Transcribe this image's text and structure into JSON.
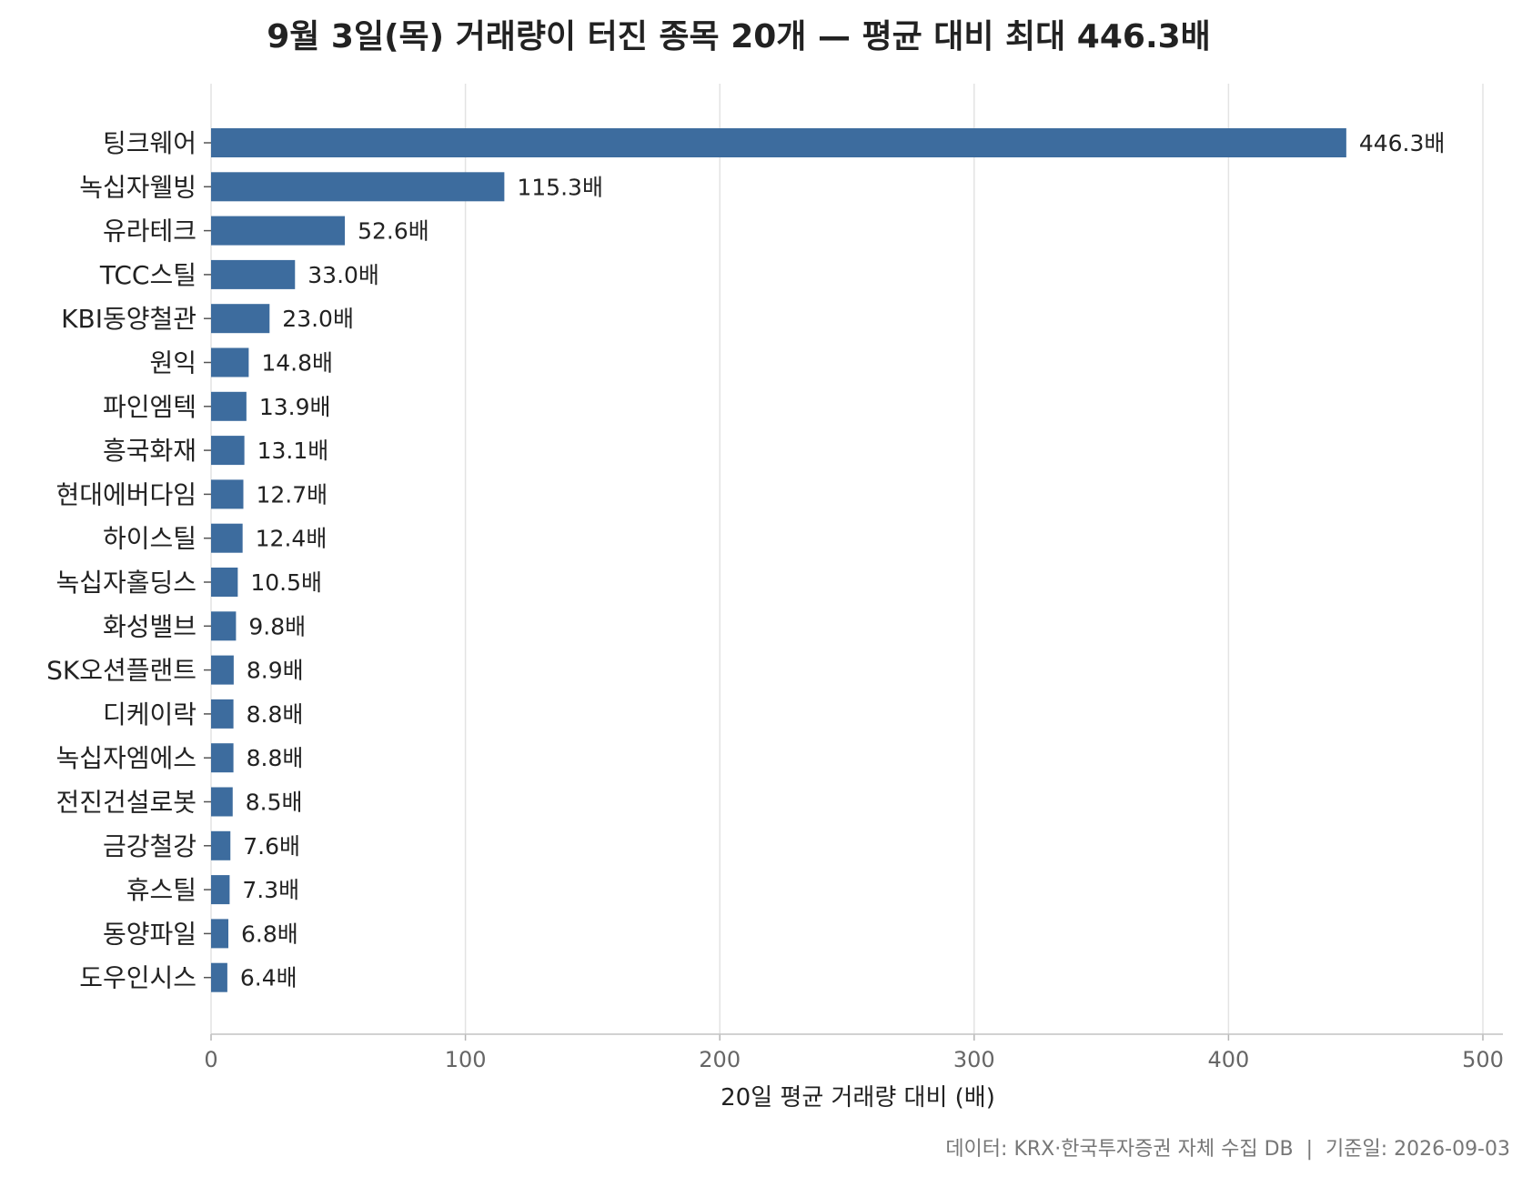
{
  "chart_data": {
    "type": "bar",
    "orientation": "horizontal",
    "title": "9월 3일(목) 거래량이 터진 종목 20개 — 평균 대비 최대 446.3배",
    "xlabel": "20일 평균 거래량 대비 (배)",
    "ylabel": "",
    "xlim": [
      0,
      500
    ],
    "xticks": [
      0,
      100,
      200,
      300,
      400,
      500
    ],
    "xtick_labels": [
      "0",
      "100",
      "200",
      "300",
      "400",
      "500"
    ],
    "grid": "vertical",
    "bar_color": "#3d6c9e",
    "categories": [
      "팅크웨어",
      "녹십자웰빙",
      "유라테크",
      "TCC스틸",
      "KBI동양철관",
      "원익",
      "파인엠텍",
      "흥국화재",
      "현대에버다임",
      "하이스틸",
      "녹십자홀딩스",
      "화성밸브",
      "SK오션플랜트",
      "디케이락",
      "녹십자엠에스",
      "전진건설로봇",
      "금강철강",
      "휴스틸",
      "동양파일",
      "도우인시스"
    ],
    "values": [
      446.3,
      115.3,
      52.6,
      33.0,
      23.0,
      14.8,
      13.9,
      13.1,
      12.7,
      12.4,
      10.5,
      9.8,
      8.9,
      8.8,
      8.8,
      8.5,
      7.6,
      7.3,
      6.8,
      6.4
    ],
    "value_labels": [
      "446.3배",
      "115.3배",
      "52.6배",
      "33.0배",
      "23.0배",
      "14.8배",
      "13.9배",
      "13.1배",
      "12.7배",
      "12.4배",
      "10.5배",
      "9.8배",
      "8.9배",
      "8.8배",
      "8.8배",
      "8.5배",
      "7.6배",
      "7.3배",
      "6.8배",
      "6.4배"
    ]
  },
  "footer": {
    "source": "데이터: KRX·한국투자증권 자체 수집 DB  |  기준일: 2026-09-03"
  }
}
